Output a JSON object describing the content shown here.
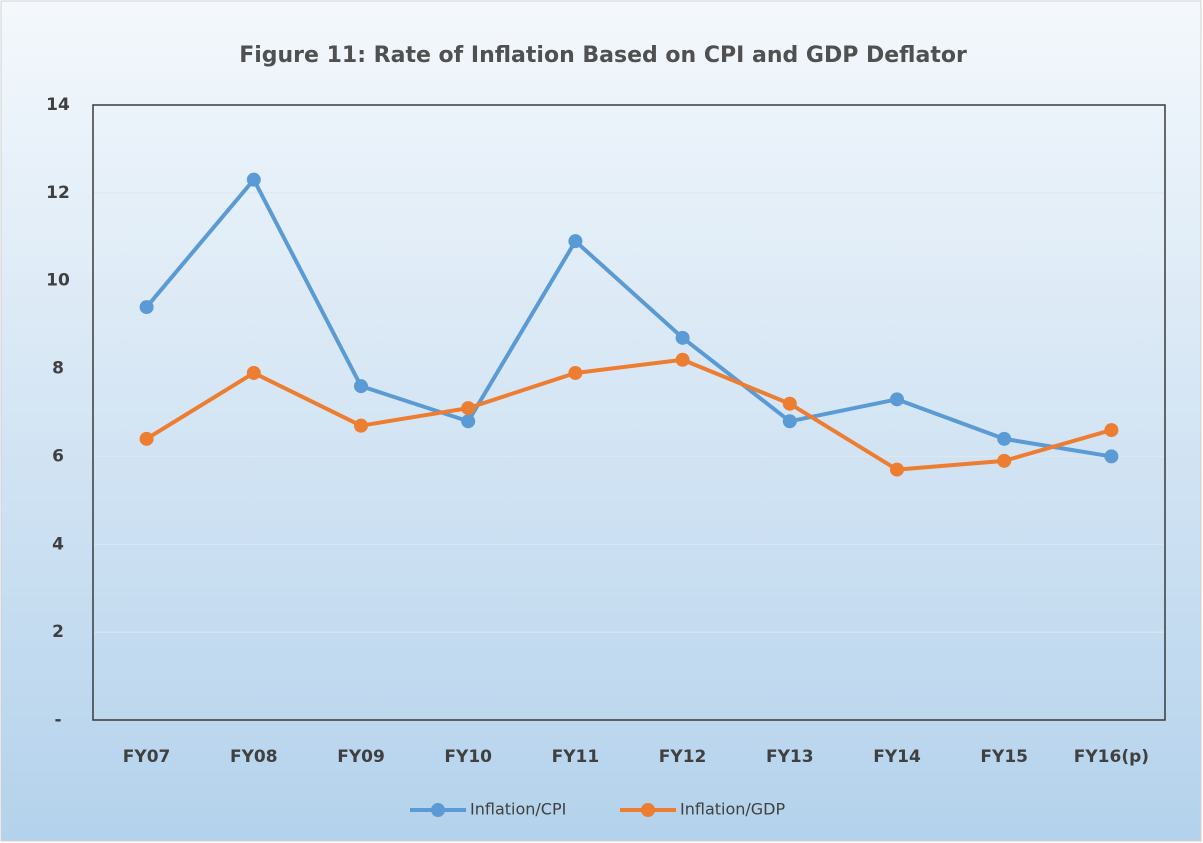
{
  "chart_data": {
    "type": "line",
    "title": "Figure 11: Rate of Inflation Based on CPI and GDP Deflator",
    "categories": [
      "FY07",
      "FY08",
      "FY09",
      "FY10",
      "FY11",
      "FY12",
      "FY13",
      "FY14",
      "FY15",
      "FY16(p)"
    ],
    "series": [
      {
        "name": "Inflation/CPI",
        "color": "#5b9bd5",
        "values": [
          9.4,
          12.3,
          7.6,
          6.8,
          10.9,
          8.7,
          6.8,
          7.3,
          6.4,
          6.0
        ]
      },
      {
        "name": "Inflation/GDP",
        "color": "#ed7d31",
        "values": [
          6.4,
          7.9,
          6.7,
          7.1,
          7.9,
          8.2,
          7.2,
          5.7,
          5.9,
          6.6
        ]
      }
    ],
    "ylim": [
      0,
      14
    ],
    "yticks": [
      {
        "value": 0,
        "label": "-"
      },
      2,
      4,
      6,
      8,
      10,
      12,
      14
    ],
    "grid": true,
    "legend": "bottom"
  }
}
